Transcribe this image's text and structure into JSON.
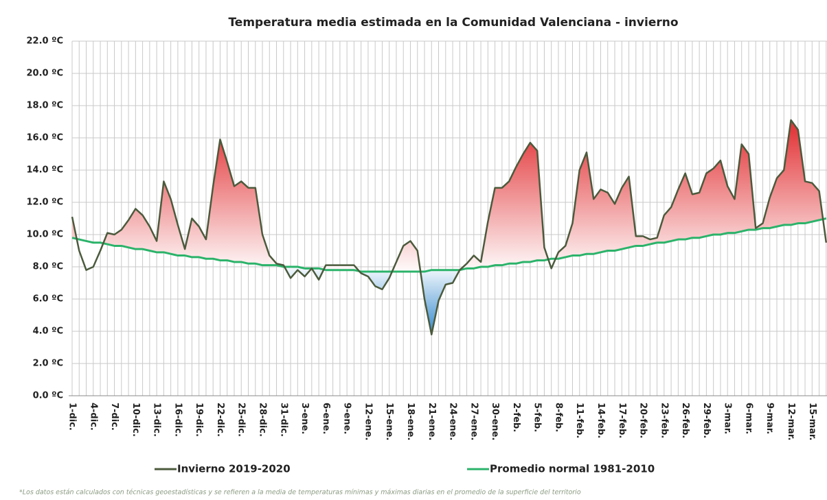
{
  "chart_data": {
    "type": "line",
    "title": "Temperatura media estimada en la Comunidad Valenciana - invierno",
    "footnote": "*Los datos están calculados con técnicas geoestadísticas y se refieren a la media de temperaturas mínimas y máximas diarias en el promedio de la superficie del territorio",
    "categories": [
      "1-dic.",
      null,
      null,
      "4-dic.",
      null,
      null,
      "7-dic.",
      null,
      null,
      "10-dic.",
      null,
      null,
      "13-dic.",
      null,
      null,
      "16-dic.",
      null,
      null,
      "19-dic.",
      null,
      null,
      "22-dic.",
      null,
      null,
      "25-dic.",
      null,
      null,
      "28-dic.",
      null,
      null,
      "31-dic.",
      null,
      null,
      "3-ene.",
      null,
      null,
      "6-ene.",
      null,
      null,
      "9-ene.",
      null,
      null,
      "12-ene.",
      null,
      null,
      "15-ene.",
      null,
      null,
      "18-ene.",
      null,
      null,
      "21-ene.",
      null,
      null,
      "24-ene.",
      null,
      null,
      "27-ene.",
      null,
      null,
      "30-ene.",
      null,
      null,
      "2-feb.",
      null,
      null,
      "5-feb.",
      null,
      null,
      "8-feb.",
      null,
      null,
      "11-feb.",
      null,
      null,
      "14-feb.",
      null,
      null,
      "17-feb.",
      null,
      null,
      "20-feb.",
      null,
      null,
      "23-feb.",
      null,
      null,
      "26-feb.",
      null,
      null,
      "29-feb.",
      null,
      null,
      "3-mar.",
      null,
      null,
      "6-mar.",
      null,
      null,
      "9-mar.",
      null,
      null,
      "12-mar.",
      null,
      null,
      "15-mar.",
      null,
      null
    ],
    "series": [
      {
        "name": "Invierno 2019-2020",
        "color": "#4b5a3c",
        "values": [
          11.1,
          9.0,
          7.8,
          8.0,
          9.0,
          10.1,
          10.0,
          10.3,
          10.9,
          11.6,
          11.2,
          10.5,
          9.6,
          13.3,
          12.2,
          10.6,
          9.1,
          11.0,
          10.5,
          9.7,
          13.0,
          15.9,
          14.5,
          13.0,
          13.3,
          12.9,
          12.9,
          10.0,
          8.7,
          8.2,
          8.1,
          7.3,
          7.8,
          7.4,
          7.9,
          7.2,
          8.1,
          8.1,
          8.1,
          8.1,
          8.1,
          7.6,
          7.4,
          6.8,
          6.6,
          7.3,
          8.3,
          9.3,
          9.6,
          9.0,
          6.0,
          3.8,
          5.9,
          6.9,
          7.0,
          7.8,
          8.2,
          8.7,
          8.3,
          10.8,
          12.9,
          12.9,
          13.3,
          14.2,
          15.0,
          15.7,
          15.2,
          9.2,
          7.9,
          8.9,
          9.3,
          10.7,
          14.0,
          15.1,
          12.2,
          12.8,
          12.6,
          11.9,
          12.9,
          13.6,
          9.9,
          9.9,
          9.7,
          9.8,
          11.2,
          11.7,
          12.8,
          13.8,
          12.5,
          12.6,
          13.8,
          14.1,
          14.6,
          13.0,
          12.2,
          15.6,
          15.0,
          10.4,
          10.7,
          12.3,
          13.5,
          14.0,
          17.1,
          16.5,
          13.3,
          13.2,
          12.7,
          9.5
        ]
      },
      {
        "name": "Promedio normal 1981-2010",
        "color": "#2bb36a",
        "values": [
          9.8,
          9.7,
          9.6,
          9.5,
          9.5,
          9.4,
          9.3,
          9.3,
          9.2,
          9.1,
          9.1,
          9.0,
          8.9,
          8.9,
          8.8,
          8.7,
          8.7,
          8.6,
          8.6,
          8.5,
          8.5,
          8.4,
          8.4,
          8.3,
          8.3,
          8.2,
          8.2,
          8.1,
          8.1,
          8.1,
          8.0,
          8.0,
          8.0,
          7.9,
          7.9,
          7.9,
          7.8,
          7.8,
          7.8,
          7.8,
          7.8,
          7.7,
          7.7,
          7.7,
          7.7,
          7.7,
          7.7,
          7.7,
          7.7,
          7.7,
          7.7,
          7.8,
          7.8,
          7.8,
          7.8,
          7.8,
          7.9,
          7.9,
          8.0,
          8.0,
          8.1,
          8.1,
          8.2,
          8.2,
          8.3,
          8.3,
          8.4,
          8.4,
          8.5,
          8.5,
          8.6,
          8.7,
          8.7,
          8.8,
          8.8,
          8.9,
          9.0,
          9.0,
          9.1,
          9.2,
          9.3,
          9.3,
          9.4,
          9.5,
          9.5,
          9.6,
          9.7,
          9.7,
          9.8,
          9.8,
          9.9,
          10.0,
          10.0,
          10.1,
          10.1,
          10.2,
          10.3,
          10.3,
          10.4,
          10.4,
          10.5,
          10.6,
          10.6,
          10.7,
          10.7,
          10.8,
          10.9,
          11.0
        ]
      }
    ],
    "ylim": [
      0,
      22
    ],
    "yticks": [
      {
        "value": 0,
        "label": "0.0 ºC"
      },
      {
        "value": 2,
        "label": "2.0 ºC"
      },
      {
        "value": 4,
        "label": "4.0 ºC"
      },
      {
        "value": 6,
        "label": "6.0 ºC"
      },
      {
        "value": 8,
        "label": "8.0 ºC"
      },
      {
        "value": 10,
        "label": "10.0 ºC"
      },
      {
        "value": 12,
        "label": "12.0 ºC"
      },
      {
        "value": 14,
        "label": "14.0 ºC"
      },
      {
        "value": 16,
        "label": "16.0 ºC"
      },
      {
        "value": 18,
        "label": "18.0 ºC"
      },
      {
        "value": 20,
        "label": "20.0 ºC"
      },
      {
        "value": 22,
        "label": "22.0 ºC"
      }
    ],
    "grid": true
  }
}
